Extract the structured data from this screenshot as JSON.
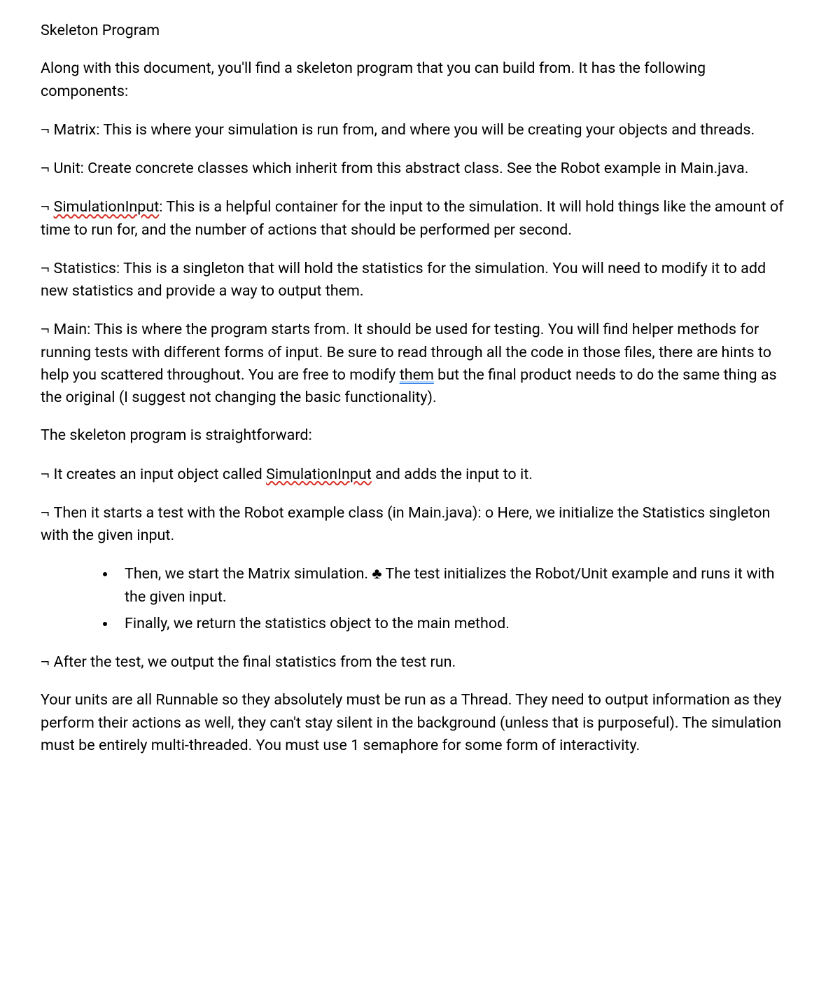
{
  "heading": "Skeleton Program",
  "intro": "Along with this document, you'll find a skeleton program that you can build from. It has the following components:",
  "neg": "¬",
  "club": "♣",
  "component_matrix": "Matrix: This is where your simulation is run from, and where you will be creating your objects and threads.",
  "component_unit": "Unit: Create concrete classes which inherit from this abstract class. See the Robot example in Main.java.",
  "component_siminput_word": "SimulationInput",
  "component_siminput_rest": ": This is a helpful container for the input to the simulation. It will hold things like the amount of time to run for, and the number of actions that should be performed per second.",
  "component_statistics": "Statistics: This is a singleton that will hold the statistics for the simulation. You will need to modify it to add new statistics and provide a way to output them.",
  "component_main_pre": "Main: This is where the program starts from. It should be used for testing. You will find helper methods for running tests with different forms of input. Be sure to read through all the code in those files, there are hints to help you scattered throughout. You are free to modify ",
  "component_main_them": "them",
  "component_main_post": " but the final product needs to do the same thing as the original (I suggest not changing the basic functionality).",
  "straightforward": "The skeleton program is straightforward:",
  "step1_pre": "It creates an input object called ",
  "step1_siminput": "SimulationInput",
  "step1_post": " and adds the input to it.",
  "step2": "Then it starts a test with the Robot example class (in Main.java): o Here, we initialize the Statistics singleton with the given input.",
  "bullet1_pre": "Then, we start the Matrix simulation. ",
  "bullet1_post": " The test initializes the Robot/Unit example and runs it with the given input.",
  "bullet2": "Finally, we return the statistics object to the main method.",
  "step3": "After the test, we output the final statistics from the test run.",
  "closing": "Your units are all Runnable so they absolutely must be run as a Thread. They need to output information as they perform their actions as well, they can't stay silent in the background (unless that is purposeful). The simulation must be entirely multi-threaded. You must use 1 semaphore for some form of interactivity."
}
